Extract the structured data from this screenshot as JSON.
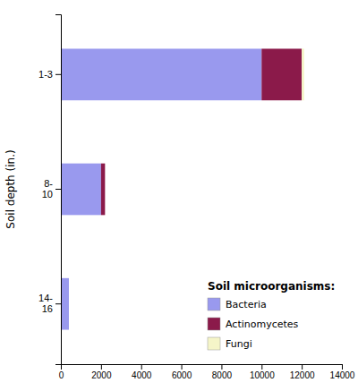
{
  "chart_data": {
    "type": "bar",
    "orientation": "horizontal",
    "stacked": true,
    "categories": [
      "1-3",
      "8-\n10",
      "14-\n16"
    ],
    "series": [
      {
        "name": "Bacteria",
        "color": "#9999ee",
        "values": [
          10000,
          2000,
          400
        ]
      },
      {
        "name": "Actinomycetes",
        "color": "#8b1a4a",
        "values": [
          2000,
          200,
          0
        ]
      },
      {
        "name": "Fungi",
        "color": "#f5f5c8",
        "values": [
          120,
          0,
          0
        ]
      }
    ],
    "y_label": "Soil depth (in.)",
    "legend_title": "Soil microorganisms:",
    "legend": "lower right",
    "grid": false,
    "xlim": [
      0,
      14000
    ],
    "xticks": [
      0,
      2000,
      4000,
      6000,
      8000,
      10000,
      12000,
      14000
    ]
  }
}
